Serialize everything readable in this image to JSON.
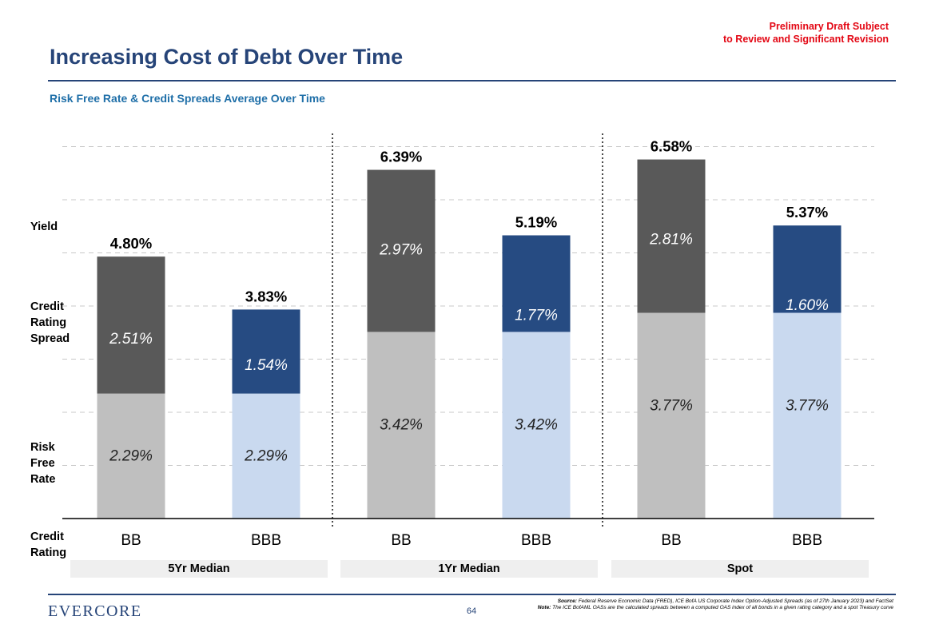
{
  "header": {
    "draft_line1": "Preliminary Draft Subject",
    "draft_line2": "to Review and Significant Revision",
    "title": "Increasing Cost of Debt Over Time",
    "subtitle": "Risk Free Rate & Credit Spreads Average Over Time"
  },
  "row_labels": {
    "yield": "Yield",
    "spread": [
      "Credit",
      "Rating",
      "Spread"
    ],
    "risk_free": [
      "Risk",
      "Free",
      "Rate"
    ],
    "credit_rating": [
      "Credit",
      "Rating"
    ]
  },
  "footer": {
    "logo": "EVERCORE",
    "page_number": "64",
    "source_label": "Source:",
    "source_text": "Federal Reserve Economic Data (FRED), ICE BofA US Corporate Index Option-Adjusted Spreads (as of 27th January 2023) and FactSet",
    "note_label": "Note:",
    "note_text": "The ICE BofAML OASs are the calculated spreads between a computed OAS index of all bonds in a given rating category and a spot Treasury curve"
  },
  "colors": {
    "bb_spread": "#595959",
    "bb_rfr": "#bfbfbf",
    "bbb_spread": "#264b82",
    "bbb_rfr": "#c9d9ef",
    "accent": "#264478",
    "draft": "#e30613"
  },
  "chart_data": {
    "type": "bar",
    "stacked": true,
    "title": "Risk Free Rate & Credit Spreads Average Over Time",
    "ylim": [
      0,
      7.0
    ],
    "grid": true,
    "groups": [
      "5Yr Median",
      "1Yr Median",
      "Spot"
    ],
    "categories": [
      "BB",
      "BBB",
      "BB",
      "BBB",
      "BB",
      "BBB"
    ],
    "series": [
      {
        "name": "Risk Free Rate",
        "values": [
          2.29,
          2.29,
          3.42,
          3.42,
          3.77,
          3.77
        ],
        "labels": [
          "2.29%",
          "2.29%",
          "3.42%",
          "3.42%",
          "3.77%",
          "3.77%"
        ]
      },
      {
        "name": "Credit Rating Spread",
        "values": [
          2.51,
          1.54,
          2.97,
          1.77,
          2.81,
          1.6
        ],
        "labels": [
          "2.51%",
          "1.54%",
          "2.97%",
          "1.77%",
          "2.81%",
          "1.60%"
        ]
      }
    ],
    "totals": [
      4.8,
      3.83,
      6.39,
      5.19,
      6.58,
      5.37
    ],
    "total_labels": [
      "4.80%",
      "3.83%",
      "6.39%",
      "5.19%",
      "6.58%",
      "5.37%"
    ]
  }
}
